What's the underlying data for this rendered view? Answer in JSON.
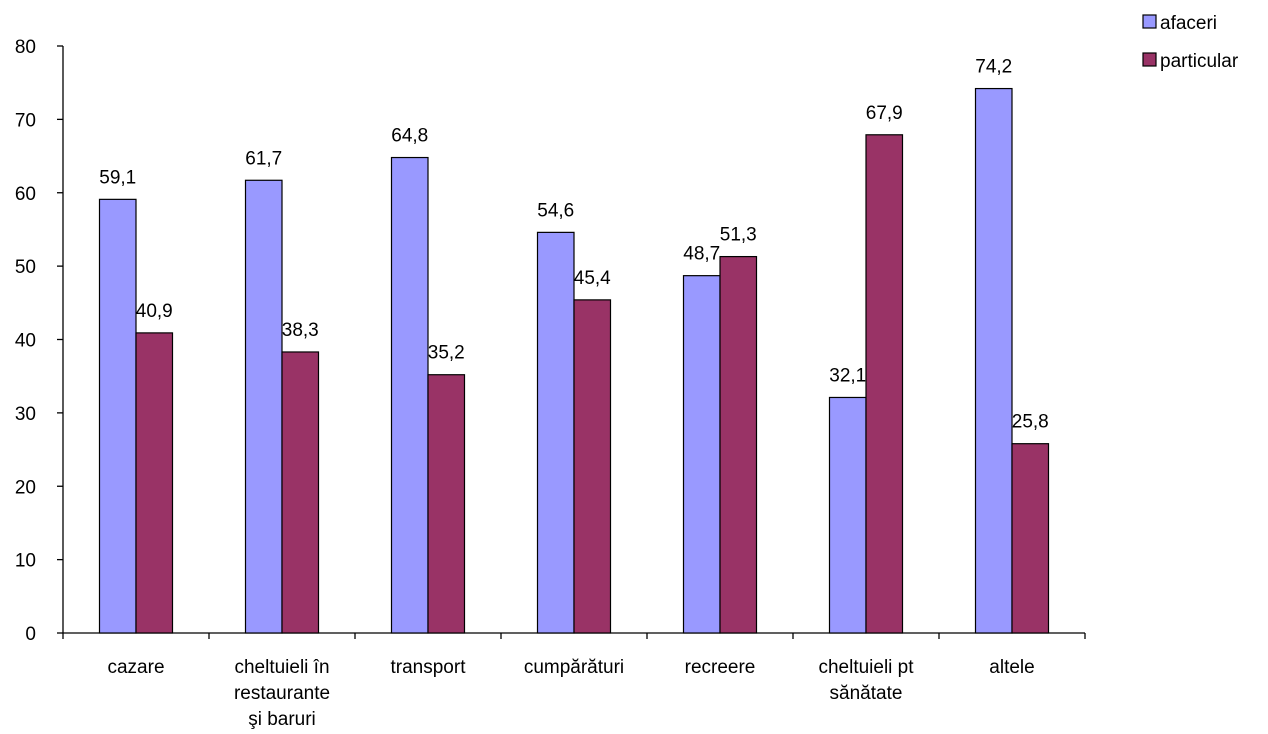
{
  "chart_data": {
    "type": "bar",
    "categories": [
      [
        "cazare"
      ],
      [
        "cheltuieli în",
        "restaurante",
        "şi baruri"
      ],
      [
        "transport"
      ],
      [
        "cumpărături"
      ],
      [
        "recreere"
      ],
      [
        "cheltuieli pt",
        "sănătate"
      ],
      [
        "altele"
      ]
    ],
    "series": [
      {
        "name": "afaceri",
        "color": "#9999ff",
        "values": [
          59.1,
          61.7,
          64.8,
          54.6,
          48.7,
          32.1,
          74.2
        ],
        "labels": [
          "59,1",
          "61,7",
          "64,8",
          "54,6",
          "48,7",
          "32,1",
          "74,2"
        ]
      },
      {
        "name": "particular",
        "color": "#993366",
        "values": [
          40.9,
          38.3,
          35.2,
          45.4,
          51.3,
          67.9,
          25.8
        ],
        "labels": [
          "40,9",
          "38,3",
          "35,2",
          "45,4",
          "51,3",
          "67,9",
          "25,8"
        ]
      }
    ],
    "yticks": [
      "0",
      "10",
      "20",
      "30",
      "40",
      "50",
      "60",
      "70",
      "80"
    ],
    "ylim": [
      0,
      80
    ],
    "grid": false,
    "legend_position": "top-right"
  }
}
